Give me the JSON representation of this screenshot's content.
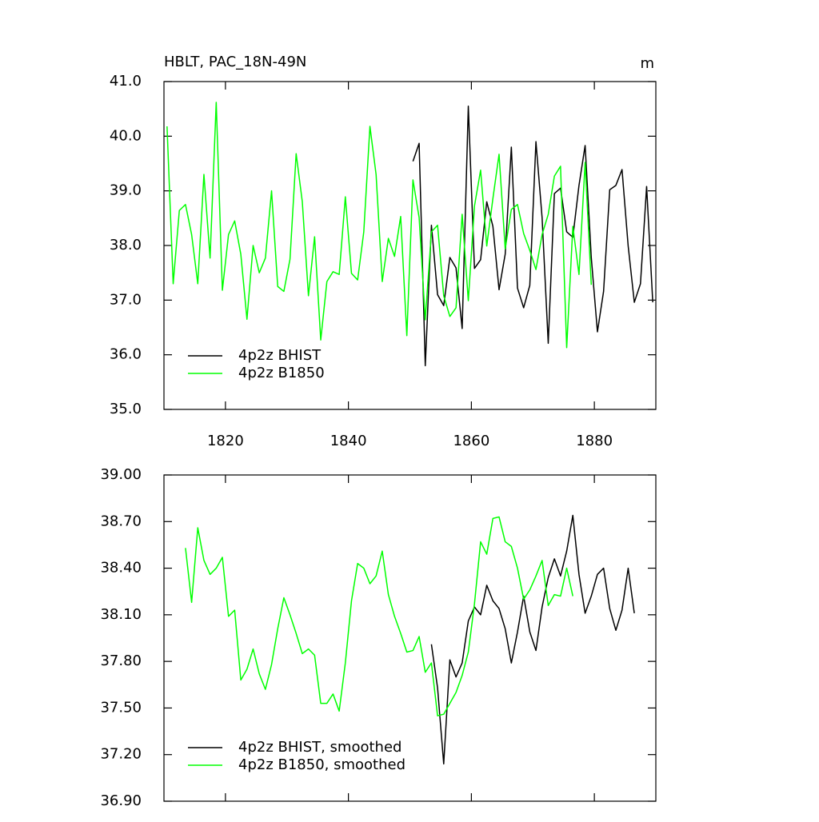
{
  "chart_data": [
    {
      "type": "line",
      "title": "HBLT, PAC_18N-49N",
      "units": "m",
      "xlim": [
        1810,
        1890
      ],
      "xticks": [
        1820,
        1840,
        1860,
        1880
      ],
      "show_xtick_labels": true,
      "ylim": [
        35,
        41
      ],
      "yticks": [
        {
          "value": 35,
          "label": "35.0"
        },
        {
          "value": 36,
          "label": "36.0"
        },
        {
          "value": 37,
          "label": "37.0"
        },
        {
          "value": 38,
          "label": "38.0"
        },
        {
          "value": 39,
          "label": "39.0"
        },
        {
          "value": 40,
          "label": "40.0"
        },
        {
          "value": 41,
          "label": "41.0"
        }
      ],
      "legend": "lower left",
      "series": [
        {
          "name": "4p2z BHIST",
          "color": "#000000",
          "x": [
            1850.5,
            1851.5,
            1852.5,
            1853.5,
            1854.5,
            1855.5,
            1856.5,
            1857.5,
            1858.5,
            1859.5,
            1860.5,
            1861.5,
            1862.5,
            1863.5,
            1864.5,
            1865.5,
            1866.5,
            1867.5,
            1868.5,
            1869.5,
            1870.5,
            1871.5,
            1872.5,
            1873.5,
            1874.5,
            1875.5,
            1876.5,
            1877.5,
            1878.5,
            1879.5,
            1880.5,
            1881.5,
            1882.5,
            1883.5,
            1884.5,
            1885.5,
            1886.5,
            1887.5,
            1888.5,
            1889.5
          ],
          "values": [
            39.54,
            39.87,
            35.8,
            38.37,
            37.1,
            36.9,
            37.78,
            37.59,
            36.48,
            40.55,
            37.58,
            37.74,
            38.8,
            38.35,
            37.19,
            37.84,
            39.8,
            37.22,
            36.86,
            37.27,
            39.9,
            38.51,
            36.21,
            38.95,
            39.05,
            38.25,
            38.15,
            39.1,
            39.83,
            37.78,
            36.42,
            37.16,
            39.02,
            39.1,
            39.39,
            37.99,
            36.96,
            37.3,
            39.08,
            36.96
          ]
        },
        {
          "name": "4p2z B1850",
          "color": "#00ff00",
          "x": [
            1810.5,
            1811.5,
            1812.5,
            1813.5,
            1814.5,
            1815.5,
            1816.5,
            1817.5,
            1818.5,
            1819.5,
            1820.5,
            1821.5,
            1822.5,
            1823.5,
            1824.5,
            1825.5,
            1826.5,
            1827.5,
            1828.5,
            1829.5,
            1830.5,
            1831.5,
            1832.5,
            1833.5,
            1834.5,
            1835.5,
            1836.5,
            1837.5,
            1838.5,
            1839.5,
            1840.5,
            1841.5,
            1842.5,
            1843.5,
            1844.5,
            1845.5,
            1846.5,
            1847.5,
            1848.5,
            1849.5,
            1850.5,
            1851.5,
            1852.5,
            1853.5,
            1854.5,
            1855.5,
            1856.5,
            1857.5,
            1858.5,
            1859.5,
            1860.5,
            1861.5,
            1862.5,
            1863.5,
            1864.5,
            1865.5,
            1866.5,
            1867.5,
            1868.5,
            1869.5,
            1870.5,
            1871.5,
            1872.5,
            1873.5,
            1874.5,
            1875.5,
            1876.5,
            1877.5,
            1878.5,
            1879.5
          ],
          "values": [
            40.18,
            37.3,
            38.64,
            38.75,
            38.2,
            37.3,
            39.3,
            37.77,
            40.62,
            37.18,
            38.2,
            38.45,
            37.84,
            36.65,
            38.0,
            37.5,
            37.77,
            39.0,
            37.25,
            37.16,
            37.75,
            39.68,
            38.8,
            37.08,
            38.16,
            36.27,
            37.34,
            37.52,
            37.47,
            38.89,
            37.49,
            37.37,
            38.25,
            40.18,
            39.3,
            37.34,
            38.13,
            37.8,
            38.53,
            36.35,
            39.2,
            38.51,
            36.64,
            38.25,
            38.37,
            37.08,
            36.7,
            36.86,
            38.57,
            36.99,
            38.72,
            39.38,
            37.99,
            38.86,
            39.67,
            37.94,
            38.66,
            38.75,
            38.22,
            37.91,
            37.56,
            38.2,
            38.57,
            39.27,
            39.45,
            36.13,
            38.35,
            37.47,
            39.52,
            37.28
          ]
        }
      ]
    },
    {
      "type": "line",
      "xlim": [
        1810,
        1890
      ],
      "xticks": [
        1820,
        1840,
        1860,
        1880
      ],
      "show_xtick_labels": false,
      "ylim": [
        36.9,
        39
      ],
      "yticks": [
        {
          "value": 36.9,
          "label": "36.90"
        },
        {
          "value": 37.2,
          "label": "37.20"
        },
        {
          "value": 37.5,
          "label": "37.50"
        },
        {
          "value": 37.8,
          "label": "37.80"
        },
        {
          "value": 38.1,
          "label": "38.10"
        },
        {
          "value": 38.4,
          "label": "38.40"
        },
        {
          "value": 38.7,
          "label": "38.70"
        },
        {
          "value": 39,
          "label": "39.00"
        }
      ],
      "legend": "lower left",
      "series": [
        {
          "name": "4p2z BHIST, smoothed",
          "color": "#000000",
          "x": [
            1853.5,
            1854.5,
            1855.5,
            1856.5,
            1857.5,
            1858.5,
            1859.5,
            1860.5,
            1861.5,
            1862.5,
            1863.5,
            1864.5,
            1865.5,
            1866.5,
            1867.5,
            1868.5,
            1869.5,
            1870.5,
            1871.5,
            1872.5,
            1873.5,
            1874.5,
            1875.5,
            1876.5,
            1877.5,
            1878.5,
            1879.5,
            1880.5,
            1881.5,
            1882.5,
            1883.5,
            1884.5,
            1885.5,
            1886.5
          ],
          "values": [
            37.91,
            37.63,
            37.14,
            37.81,
            37.7,
            37.79,
            38.06,
            38.15,
            38.1,
            38.29,
            38.19,
            38.14,
            38.01,
            37.79,
            37.99,
            38.22,
            37.99,
            37.87,
            38.15,
            38.34,
            38.46,
            38.35,
            38.51,
            38.74,
            38.36,
            38.11,
            38.22,
            38.36,
            38.4,
            38.14,
            38.0,
            38.13,
            38.4,
            38.11
          ]
        },
        {
          "name": "4p2z B1850, smoothed",
          "color": "#00ff00",
          "x": [
            1813.5,
            1814.5,
            1815.5,
            1816.5,
            1817.5,
            1818.5,
            1819.5,
            1820.5,
            1821.5,
            1822.5,
            1823.5,
            1824.5,
            1825.5,
            1826.5,
            1827.5,
            1828.5,
            1829.5,
            1830.5,
            1831.5,
            1832.5,
            1833.5,
            1834.5,
            1835.5,
            1836.5,
            1837.5,
            1838.5,
            1839.5,
            1840.5,
            1841.5,
            1842.5,
            1843.5,
            1844.5,
            1845.5,
            1846.5,
            1847.5,
            1848.5,
            1849.5,
            1850.5,
            1851.5,
            1852.5,
            1853.5,
            1854.5,
            1855.5,
            1856.5,
            1857.5,
            1858.5,
            1859.5,
            1860.5,
            1861.5,
            1862.5,
            1863.5,
            1864.5,
            1865.5,
            1866.5,
            1867.5,
            1868.5,
            1869.5,
            1870.5,
            1871.5,
            1872.5,
            1873.5,
            1874.5,
            1875.5,
            1876.5
          ],
          "values": [
            38.53,
            38.18,
            38.66,
            38.45,
            38.36,
            38.4,
            38.47,
            38.09,
            38.13,
            37.68,
            37.75,
            37.88,
            37.72,
            37.62,
            37.78,
            38.01,
            38.21,
            38.1,
            37.98,
            37.85,
            37.88,
            37.84,
            37.53,
            37.53,
            37.59,
            37.48,
            37.79,
            38.19,
            38.43,
            38.4,
            38.3,
            38.35,
            38.51,
            38.23,
            38.09,
            37.98,
            37.86,
            37.87,
            37.96,
            37.73,
            37.79,
            37.45,
            37.46,
            37.53,
            37.6,
            37.71,
            37.86,
            38.17,
            38.57,
            38.49,
            38.72,
            38.73,
            38.57,
            38.54,
            38.4,
            38.2,
            38.26,
            38.35,
            38.45,
            38.16,
            38.23,
            38.22,
            38.4,
            38.22
          ]
        }
      ]
    }
  ]
}
